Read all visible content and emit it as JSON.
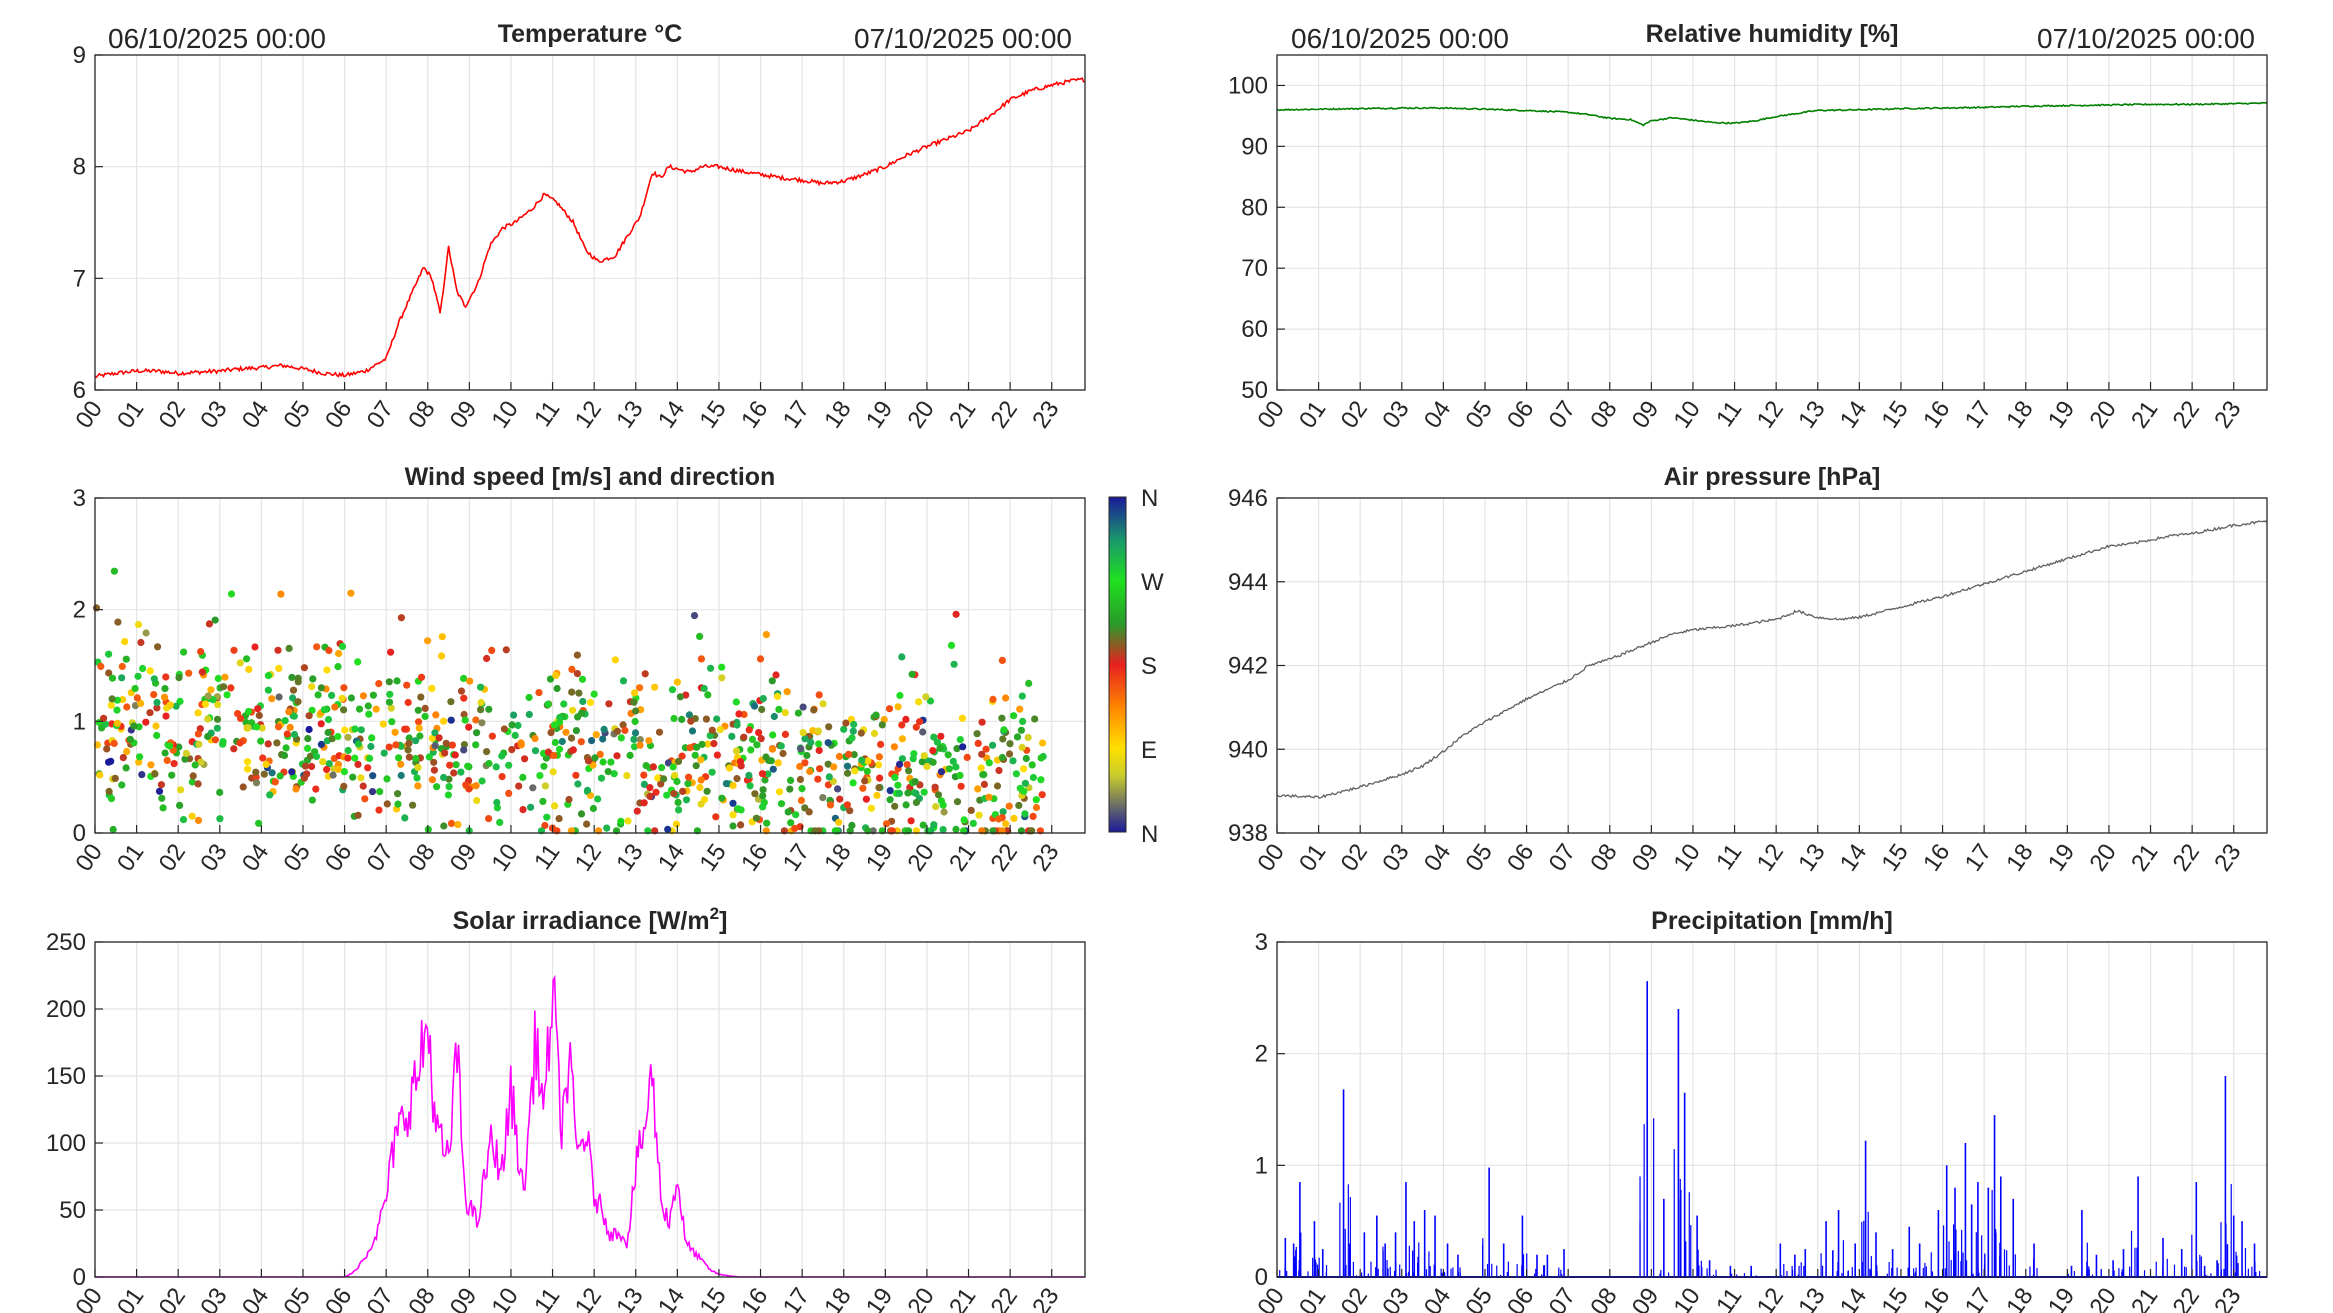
{
  "dates": {
    "start": "06/10/2025 00:00",
    "end": "07/10/2025 00:00"
  },
  "hour_labels": [
    "00",
    "01",
    "02",
    "03",
    "04",
    "05",
    "06",
    "07",
    "08",
    "09",
    "10",
    "11",
    "12",
    "13",
    "14",
    "15",
    "16",
    "17",
    "18",
    "19",
    "20",
    "21",
    "22",
    "23"
  ],
  "colorbar": {
    "labels": [
      "N",
      "W",
      "S",
      "E",
      "N"
    ]
  },
  "chart_data": [
    {
      "id": "temperature",
      "type": "line",
      "title": "Temperature °C",
      "color": "#ff0000",
      "xlabel": "",
      "ylabel": "",
      "xlim": [
        0,
        23.8
      ],
      "ylim": [
        6,
        9
      ],
      "yticks": [
        6,
        7,
        8,
        9
      ],
      "x": [
        0,
        0.5,
        1,
        1.5,
        2,
        2.5,
        3,
        3.5,
        4,
        4.5,
        5,
        5.5,
        6,
        6.5,
        7,
        7.3,
        7.6,
        7.9,
        8.1,
        8.3,
        8.5,
        8.7,
        8.9,
        9.2,
        9.5,
        9.8,
        10.1,
        10.5,
        10.8,
        11.1,
        11.5,
        11.8,
        12.1,
        12.5,
        12.8,
        13.1,
        13.4,
        13.6,
        13.8,
        14,
        14.3,
        14.6,
        15,
        15.5,
        16,
        16.5,
        17,
        17.5,
        18,
        18.5,
        19,
        19.5,
        20,
        20.5,
        21,
        21.5,
        22,
        22.5,
        23,
        23.5,
        23.8
      ],
      "y": [
        6.12,
        6.15,
        6.17,
        6.17,
        6.15,
        6.16,
        6.17,
        6.19,
        6.2,
        6.22,
        6.19,
        6.15,
        6.13,
        6.17,
        6.28,
        6.6,
        6.85,
        7.1,
        7.0,
        6.68,
        7.28,
        6.88,
        6.75,
        6.95,
        7.3,
        7.45,
        7.5,
        7.62,
        7.75,
        7.68,
        7.5,
        7.25,
        7.15,
        7.2,
        7.38,
        7.55,
        7.95,
        7.9,
        8.0,
        7.98,
        7.95,
        8.0,
        8.0,
        7.96,
        7.93,
        7.9,
        7.88,
        7.85,
        7.87,
        7.93,
        8.0,
        8.1,
        8.18,
        8.25,
        8.32,
        8.45,
        8.6,
        8.68,
        8.73,
        8.77,
        8.78
      ]
    },
    {
      "id": "humidity",
      "type": "line",
      "title": "Relative humidity [%]",
      "color": "#008000",
      "xlabel": "",
      "ylabel": "",
      "xlim": [
        0,
        23.8
      ],
      "ylim": [
        50,
        105
      ],
      "yticks": [
        50,
        60,
        70,
        80,
        90,
        100
      ],
      "x": [
        0,
        1,
        2,
        3,
        4,
        5,
        6,
        7,
        7.5,
        8,
        8.5,
        8.8,
        9,
        9.5,
        10,
        10.5,
        11,
        11.5,
        12,
        12.5,
        13,
        14,
        15,
        16,
        17,
        18,
        19,
        20,
        21,
        22,
        23,
        23.8
      ],
      "y": [
        96,
        96.1,
        96.2,
        96.3,
        96.3,
        96.1,
        95.9,
        95.6,
        95.2,
        94.6,
        94.4,
        93.5,
        94.2,
        94.7,
        94.3,
        93.9,
        93.8,
        94.2,
        94.9,
        95.4,
        95.9,
        96,
        96.2,
        96.3,
        96.4,
        96.6,
        96.7,
        96.8,
        96.9,
        96.9,
        97,
        97.1
      ]
    },
    {
      "id": "wind",
      "type": "scatter",
      "title": "Wind speed [m/s] and direction",
      "xlabel": "",
      "ylabel": "",
      "xlim": [
        0,
        23.8
      ],
      "ylim": [
        0,
        3
      ],
      "yticks": [
        0,
        1,
        2,
        3
      ],
      "point_count": 1150,
      "speed_range": [
        0,
        3.05
      ],
      "colorbar_labels": [
        "N",
        "W",
        "S",
        "E",
        "N"
      ]
    },
    {
      "id": "pressure",
      "type": "line",
      "title": "Air pressure [hPa]",
      "color": "#606060",
      "xlabel": "",
      "ylabel": "",
      "xlim": [
        0,
        23.8
      ],
      "ylim": [
        938,
        946
      ],
      "yticks": [
        938,
        940,
        942,
        944,
        946
      ],
      "x": [
        0,
        1,
        2,
        3,
        3.5,
        4,
        4.5,
        5,
        6,
        7,
        7.5,
        8,
        8.5,
        9,
        9.5,
        10,
        11,
        12,
        12.5,
        13,
        13.5,
        14,
        15,
        16,
        17,
        18,
        19,
        20,
        20.5,
        21,
        21.5,
        22,
        23,
        23.8
      ],
      "y": [
        938.9,
        938.85,
        939.1,
        939.4,
        939.6,
        939.95,
        940.35,
        940.65,
        941.2,
        941.65,
        942.0,
        942.15,
        942.35,
        942.55,
        942.75,
        942.85,
        942.95,
        943.1,
        943.3,
        943.15,
        943.1,
        943.15,
        943.4,
        943.65,
        943.95,
        944.25,
        944.55,
        944.85,
        944.9,
        945.0,
        945.1,
        945.15,
        945.35,
        945.45
      ]
    },
    {
      "id": "solar",
      "type": "line",
      "title": "Solar irradiance [W/m²]",
      "color": "#ff00ff",
      "xlabel": "",
      "ylabel": "",
      "xlim": [
        0,
        23.8
      ],
      "ylim": [
        0,
        250
      ],
      "yticks": [
        0,
        50,
        100,
        150,
        200,
        250
      ],
      "x": [
        0,
        6,
        6.2,
        6.5,
        6.8,
        7,
        7.2,
        7.5,
        7.8,
        8,
        8.2,
        8.5,
        8.7,
        8.9,
        9.2,
        9.5,
        9.8,
        10,
        10.3,
        10.6,
        10.8,
        11,
        11.2,
        11.4,
        11.6,
        11.8,
        12,
        12.2,
        12.4,
        12.6,
        12.8,
        13,
        13.2,
        13.4,
        13.6,
        13.8,
        14,
        14.2,
        14.5,
        14.8,
        15,
        15.2,
        15.5,
        16,
        23.8
      ],
      "y": [
        0,
        0,
        3,
        15,
        35,
        60,
        100,
        125,
        155,
        190,
        110,
        85,
        170,
        60,
        40,
        100,
        80,
        140,
        60,
        180,
        120,
        220,
        110,
        160,
        90,
        110,
        60,
        50,
        30,
        35,
        25,
        80,
        110,
        150,
        60,
        40,
        75,
        25,
        15,
        5,
        2,
        1,
        0,
        0,
        0
      ]
    },
    {
      "id": "precip",
      "type": "spikes",
      "title": "Precipitation [mm/h]",
      "color": "#0000ff",
      "xlabel": "",
      "ylabel": "",
      "xlim": [
        0,
        23.8
      ],
      "ylim": [
        0,
        3
      ],
      "yticks": [
        0,
        1,
        2,
        3
      ],
      "x": [
        0.2,
        0.4,
        0.55,
        0.9,
        1.1,
        1.6,
        1.75,
        2.1,
        2.4,
        2.6,
        2.85,
        3.1,
        3.3,
        3.55,
        3.8,
        4.1,
        4.35,
        5.1,
        5.45,
        5.9,
        6.25,
        6.5,
        6.9,
        8.9,
        9.3,
        9.65,
        9.8,
        10.1,
        10.4,
        10.9,
        11.4,
        12.1,
        12.45,
        12.7,
        13.2,
        13.5,
        13.9,
        14.15,
        14.4,
        14.8,
        15.2,
        15.45,
        15.9,
        16.1,
        16.3,
        16.55,
        16.7,
        16.85,
        17.1,
        17.25,
        17.4,
        17.7,
        18.2,
        19.1,
        19.35,
        19.7,
        20.1,
        20.35,
        20.7,
        21.3,
        21.75,
        22.1,
        22.3,
        22.6,
        22.8,
        23.0,
        23.2,
        23.5
      ],
      "y": [
        0.35,
        0.3,
        0.85,
        0.5,
        0.25,
        1.68,
        0.3,
        0.4,
        0.55,
        0.3,
        0.4,
        0.85,
        0.5,
        0.6,
        0.55,
        0.3,
        0.2,
        0.98,
        0.3,
        0.55,
        0.2,
        0.2,
        0.25,
        2.65,
        0.7,
        2.4,
        1.65,
        0.55,
        0.15,
        0.1,
        0.1,
        0.3,
        0.2,
        0.25,
        0.5,
        0.6,
        0.3,
        1.22,
        0.4,
        0.25,
        0.45,
        0.3,
        0.6,
        1.0,
        0.8,
        1.2,
        0.65,
        0.85,
        0.8,
        1.45,
        0.9,
        0.7,
        0.3,
        0.1,
        0.6,
        0.2,
        0.15,
        0.25,
        0.9,
        0.35,
        0.25,
        0.85,
        0.1,
        0.15,
        1.8,
        0.55,
        0.5,
        0.3
      ]
    }
  ]
}
